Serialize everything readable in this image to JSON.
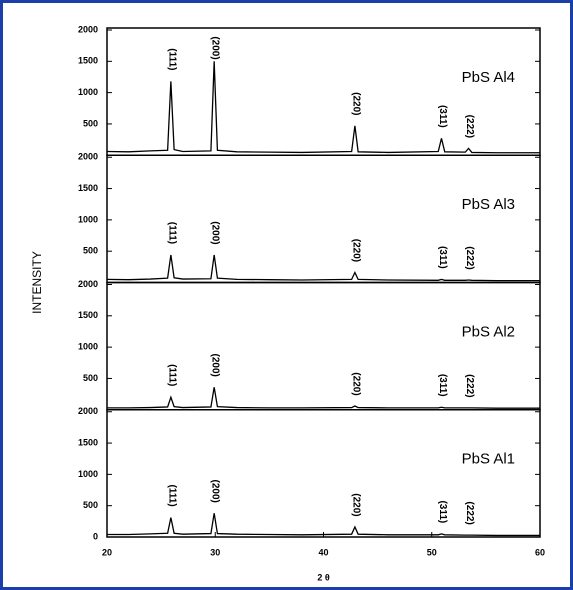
{
  "chart_data": [
    {
      "type": "line",
      "title": "PbS Al4",
      "xlim": [
        20,
        60
      ],
      "ylim": [
        0,
        2000
      ],
      "yticks": [
        500,
        1000,
        1500,
        2000
      ],
      "ylabel": "INTENSITY",
      "series": [
        {
          "color": "#000000",
          "x": [
            20,
            22,
            24,
            25.6,
            25.9,
            26.2,
            27,
            29.6,
            29.9,
            30.2,
            32,
            35,
            38,
            42.6,
            42.9,
            43.2,
            46,
            50.6,
            50.9,
            51.2,
            53.1,
            53.4,
            53.7,
            56,
            60
          ],
          "values": [
            60,
            55,
            70,
            80,
            1180,
            90,
            60,
            70,
            1500,
            80,
            55,
            50,
            45,
            60,
            470,
            55,
            45,
            60,
            270,
            55,
            50,
            110,
            45,
            40,
            40
          ]
        }
      ],
      "annotations": [
        {
          "text": "(111)",
          "x": 26
        },
        {
          "text": "(200)",
          "x": 30
        },
        {
          "text": "(220)",
          "x": 43
        },
        {
          "text": "(311)",
          "x": 51
        },
        {
          "text": "(222)",
          "x": 53.5
        }
      ]
    },
    {
      "type": "line",
      "title": "PbS Al3",
      "xlim": [
        20,
        60
      ],
      "ylim": [
        0,
        2000
      ],
      "yticks": [
        500,
        1000,
        1500,
        2000
      ],
      "series": [
        {
          "color": "#000000",
          "x": [
            20,
            22,
            24,
            25.6,
            25.9,
            26.2,
            27,
            29.6,
            29.9,
            30.2,
            32,
            35,
            38,
            42.6,
            42.9,
            43.2,
            46,
            50.6,
            50.9,
            51.2,
            53.1,
            53.4,
            53.7,
            56,
            60
          ],
          "values": [
            50,
            45,
            55,
            70,
            440,
            75,
            55,
            60,
            440,
            70,
            50,
            45,
            40,
            50,
            160,
            50,
            40,
            35,
            50,
            35,
            35,
            40,
            35,
            30,
            30
          ]
        }
      ],
      "annotations": [
        {
          "text": "(111)",
          "x": 26
        },
        {
          "text": "(200)",
          "x": 30
        },
        {
          "text": "(220)",
          "x": 43
        },
        {
          "text": "(311)",
          "x": 51
        },
        {
          "text": "(222)",
          "x": 53.5
        }
      ]
    },
    {
      "type": "line",
      "title": "PbS Al2",
      "xlim": [
        20,
        60
      ],
      "ylim": [
        0,
        2000
      ],
      "yticks": [
        500,
        1000,
        1500,
        2000
      ],
      "series": [
        {
          "color": "#000000",
          "x": [
            20,
            22,
            24,
            25.6,
            25.9,
            26.2,
            27,
            29.6,
            29.9,
            30.2,
            32,
            35,
            38,
            42.6,
            42.9,
            43.2,
            46,
            50.6,
            50.9,
            51.2,
            53.1,
            53.4,
            53.7,
            56,
            60
          ],
          "values": [
            30,
            30,
            35,
            45,
            200,
            50,
            35,
            45,
            360,
            50,
            35,
            30,
            30,
            35,
            60,
            35,
            30,
            30,
            40,
            30,
            30,
            30,
            30,
            25,
            25
          ]
        }
      ],
      "annotations": [
        {
          "text": "(111)",
          "x": 26
        },
        {
          "text": "(200)",
          "x": 30
        },
        {
          "text": "(220)",
          "x": 43
        },
        {
          "text": "(311)",
          "x": 51
        },
        {
          "text": "(222)",
          "x": 53.5
        }
      ]
    },
    {
      "type": "line",
      "title": "PbS Al1",
      "xlim": [
        20,
        60
      ],
      "ylim": [
        0,
        2000
      ],
      "yticks": [
        0,
        500,
        1000,
        1500,
        2000
      ],
      "xticks": [
        20,
        30,
        40,
        50,
        60
      ],
      "xlabel": "2 θ",
      "series": [
        {
          "color": "#000000",
          "x": [
            20,
            22,
            24,
            25.6,
            25.9,
            26.2,
            27,
            29.6,
            29.9,
            30.2,
            32,
            35,
            38,
            42.6,
            42.9,
            43.2,
            46,
            50.6,
            50.9,
            51.2,
            53.1,
            53.4,
            53.7,
            56,
            60
          ],
          "values": [
            40,
            40,
            50,
            60,
            310,
            60,
            45,
            55,
            380,
            55,
            45,
            40,
            35,
            45,
            160,
            45,
            35,
            35,
            50,
            35,
            30,
            30,
            30,
            25,
            25
          ]
        }
      ],
      "annotations": [
        {
          "text": "(111)",
          "x": 26
        },
        {
          "text": "(200)",
          "x": 30
        },
        {
          "text": "(220)",
          "x": 43
        },
        {
          "text": "(311)",
          "x": 51
        },
        {
          "text": "(222)",
          "x": 53.5
        }
      ]
    }
  ]
}
